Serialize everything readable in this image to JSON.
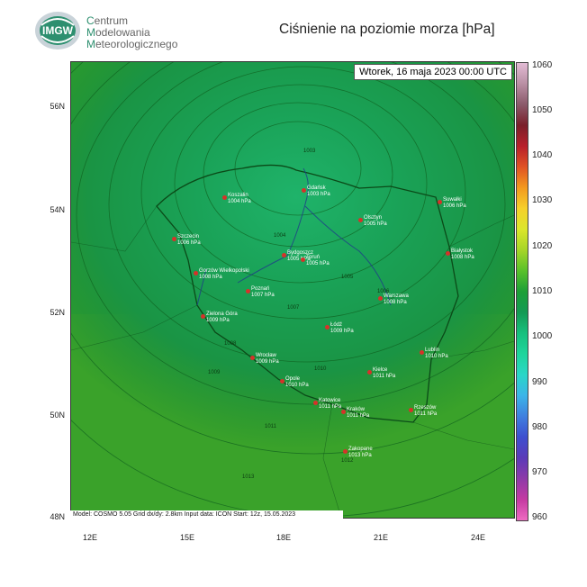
{
  "header": {
    "logo_text": "IMGW",
    "org_line1_initial": "C",
    "org_line1_rest": "entrum",
    "org_line2_initial": "M",
    "org_line2_rest": "odelowania",
    "org_line3_initial": "M",
    "org_line3_rest": "eteorologicznego",
    "title": "Ciśnienie na poziomie morza [hPa]"
  },
  "map": {
    "datetime": "Wtorek, 16 maja 2023 00:00 UTC",
    "footer": "Model: COSMO 5.05  Grid dx/dy: 2.8km  Input data: ICON  Start: 12z, 15.05.2023",
    "lat_labels": [
      "56N",
      "54N",
      "52N",
      "50N",
      "48N"
    ],
    "lon_labels": [
      "12E",
      "15E",
      "18E",
      "21E",
      "24E"
    ],
    "cities": [
      {
        "name": "Gdańsk",
        "value": "1003 hPa"
      },
      {
        "name": "Koszalin",
        "value": "1004 hPa"
      },
      {
        "name": "Suwałki",
        "value": "1006 hPa"
      },
      {
        "name": "Olsztyn",
        "value": "1005 hPa"
      },
      {
        "name": "Szczecin",
        "value": "1006 hPa"
      },
      {
        "name": "Bydgoszcz",
        "value": "1005 hPa"
      },
      {
        "name": "Toruń",
        "value": "1005 hPa"
      },
      {
        "name": "Białystok",
        "value": "1008 hPa"
      },
      {
        "name": "Gorzów Wielkopolski",
        "value": "1008 hPa"
      },
      {
        "name": "Poznań",
        "value": "1007 hPa"
      },
      {
        "name": "Warszawa",
        "value": "1008 hPa"
      },
      {
        "name": "Zielona Góra",
        "value": "1009 hPa"
      },
      {
        "name": "Łódź",
        "value": "1009 hPa"
      },
      {
        "name": "Lublin",
        "value": "1010 hPa"
      },
      {
        "name": "Wrocław",
        "value": "1009 hPa"
      },
      {
        "name": "Kielce",
        "value": "1011 hPa"
      },
      {
        "name": "Opole",
        "value": "1010 hPa"
      },
      {
        "name": "Katowice",
        "value": "1011 hPa"
      },
      {
        "name": "Kraków",
        "value": "1011 hPa"
      },
      {
        "name": "Rzeszów",
        "value": "1011 hPa"
      },
      {
        "name": "Zakopane",
        "value": "1013 hPa"
      }
    ],
    "isobar_labels": [
      "1003",
      "1004",
      "1005",
      "1006",
      "1007",
      "1008",
      "1009",
      "1010",
      "1011",
      "1012",
      "1013"
    ]
  },
  "colorbar": {
    "labels": [
      "1060",
      "1050",
      "1040",
      "1030",
      "1020",
      "1010",
      "1000",
      "990",
      "980",
      "970",
      "960"
    ],
    "colors": [
      "#e3bcd5",
      "#b98fa4",
      "#8b5a6a",
      "#7a1f2a",
      "#b8202b",
      "#e05225",
      "#f39a1f",
      "#f6d02a",
      "#dbe62b",
      "#a6d528",
      "#58c12b",
      "#1c9f37",
      "#149a54",
      "#17c07e",
      "#1ed59c",
      "#2ad6c8",
      "#3bb5e8",
      "#3f7fdf",
      "#3e4fcf",
      "#5b3ab8",
      "#8e3aa8",
      "#c53aa2",
      "#ee6bc1"
    ]
  }
}
